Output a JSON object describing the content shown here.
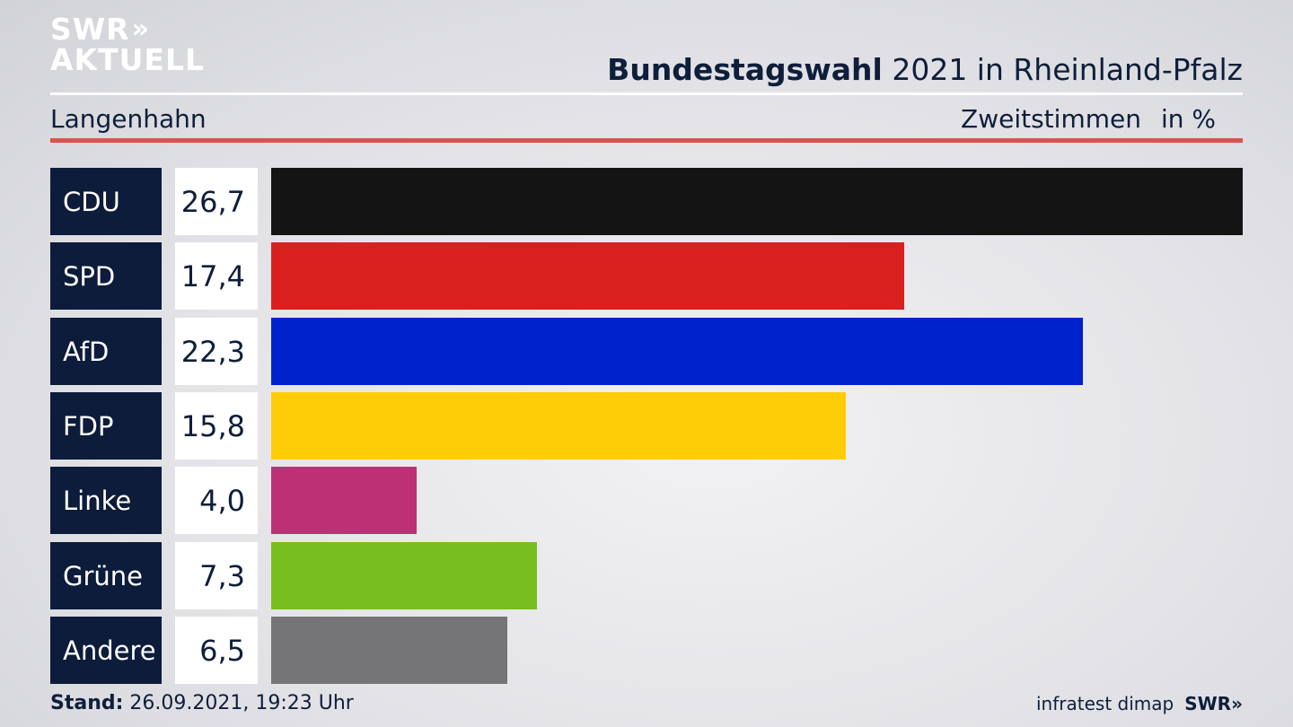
{
  "logo": {
    "line1": "SWR",
    "line2": "AKTUELL",
    "chevrons": "»"
  },
  "header": {
    "title_bold": "Bundestagswahl",
    "title_rest": "2021 in Rheinland-Pfalz",
    "subtitle": "Langenhahn",
    "measure": "Zweitstimmen",
    "unit": "in %"
  },
  "chart_data": {
    "type": "bar",
    "orientation": "horizontal",
    "title": "Bundestagswahl 2021 in Rheinland-Pfalz",
    "subtitle": "Langenhahn",
    "ylabel": "Zweitstimmen in %",
    "categories": [
      "CDU",
      "SPD",
      "AfD",
      "FDP",
      "Linke",
      "Grüne",
      "Andere"
    ],
    "values": [
      26.7,
      17.4,
      22.3,
      15.8,
      4.0,
      7.3,
      6.5
    ],
    "value_labels": [
      "26,7",
      "17,4",
      "22,3",
      "15,8",
      "4,0",
      "7,3",
      "6,5"
    ],
    "colors": [
      "#141414",
      "#d8211f",
      "#0022cc",
      "#ffcc08",
      "#be3075",
      "#78be1e",
      "#757577"
    ],
    "xlim": [
      0,
      26.7
    ],
    "grid": false,
    "legend": "none"
  },
  "footer": {
    "stand_label": "Stand:",
    "stand_value": "26.09.2021, 19:23 Uhr",
    "source": "infratest dimap",
    "brand": "SWR»"
  }
}
